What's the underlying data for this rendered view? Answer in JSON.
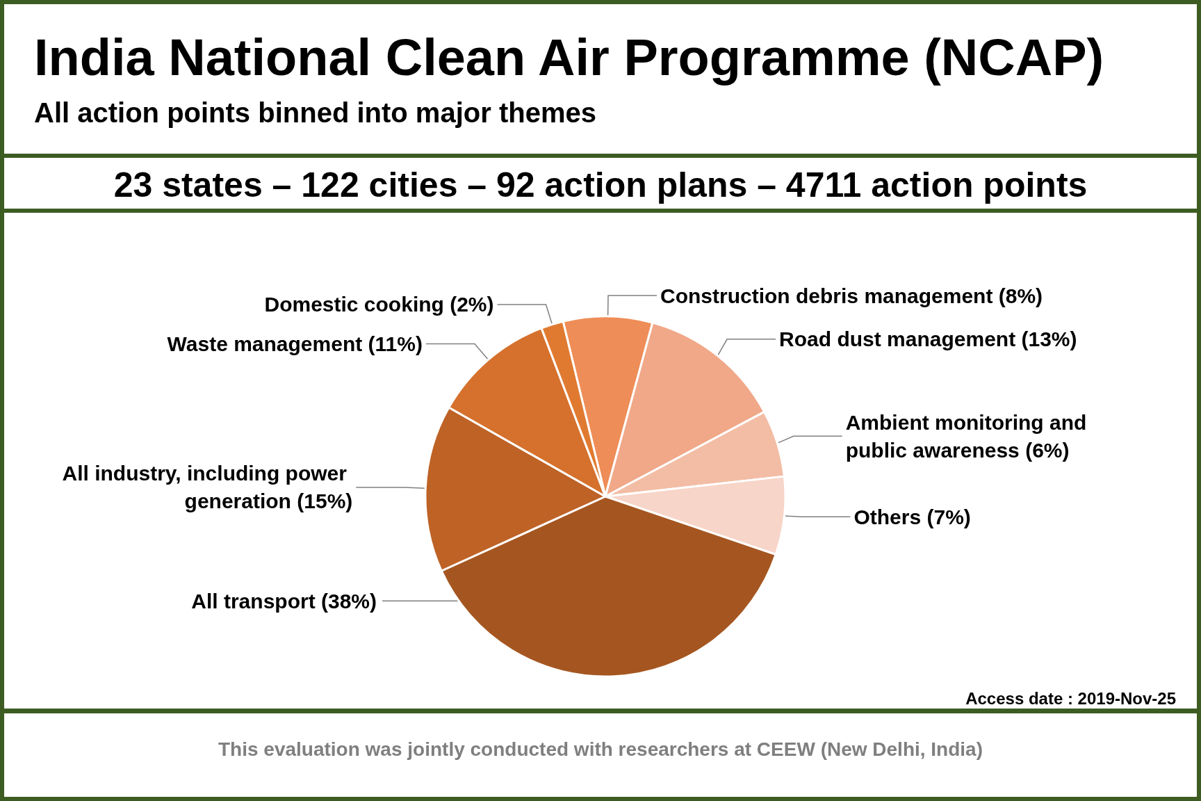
{
  "chart_data": {
    "type": "pie",
    "title": "India National Clean Air Programme (NCAP)",
    "subtitle": "All action points binned into major themes",
    "categories": [
      "Construction debris management",
      "Road dust management",
      "Ambient monitoring and public awareness",
      "Others",
      "All transport",
      "All industry, including power generation",
      "Waste management",
      "Domestic cooking"
    ],
    "values": [
      8,
      13,
      6,
      7,
      38,
      15,
      11,
      2
    ],
    "value_labels": [
      "(8%)",
      "(13%)",
      "(6%)",
      "(7%)",
      "(38%)",
      "(15%)",
      "(11%)",
      "(2%)"
    ],
    "colors": [
      "#ee8d57",
      "#f0a888",
      "#f3bda5",
      "#f7d5c8",
      "#a55620",
      "#be6226",
      "#d5712d",
      "#e07a30"
    ],
    "annotations": [
      "23 states – 122 cities – 92 action plans – 4711 action points",
      "Access date : 2019-Nov-25",
      "This evaluation was jointly conducted with researchers at CEEW (New Delhi, India)"
    ]
  }
}
